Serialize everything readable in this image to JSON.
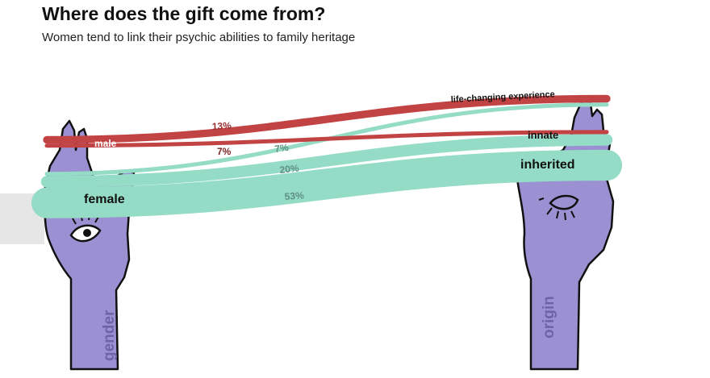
{
  "header": {
    "title": "Where does the gift come from?",
    "subtitle": "Women tend to link their psychic abilities to family heritage"
  },
  "colors": {
    "male": "#c24343",
    "female": "#95dcc6",
    "hand": "#9b90d2",
    "outline": "#111111"
  },
  "chart_data": {
    "type": "sankey",
    "left_axis_label": "gender",
    "right_axis_label": "origin",
    "sources": [
      {
        "id": "male",
        "label": "male"
      },
      {
        "id": "female",
        "label": "female"
      }
    ],
    "targets": [
      {
        "id": "life",
        "label": "life-changing experience"
      },
      {
        "id": "innate",
        "label": "innate"
      },
      {
        "id": "inherited",
        "label": "inherited"
      }
    ],
    "links": [
      {
        "source": "male",
        "target": "life",
        "value": 13,
        "label": "13%"
      },
      {
        "source": "male",
        "target": "innate",
        "value": 7,
        "label": "7%"
      },
      {
        "source": "female",
        "target": "life",
        "value": 7,
        "label": "7%"
      },
      {
        "source": "female",
        "target": "innate",
        "value": 20,
        "label": "20%"
      },
      {
        "source": "female",
        "target": "inherited",
        "value": 53,
        "label": "53%"
      }
    ]
  }
}
